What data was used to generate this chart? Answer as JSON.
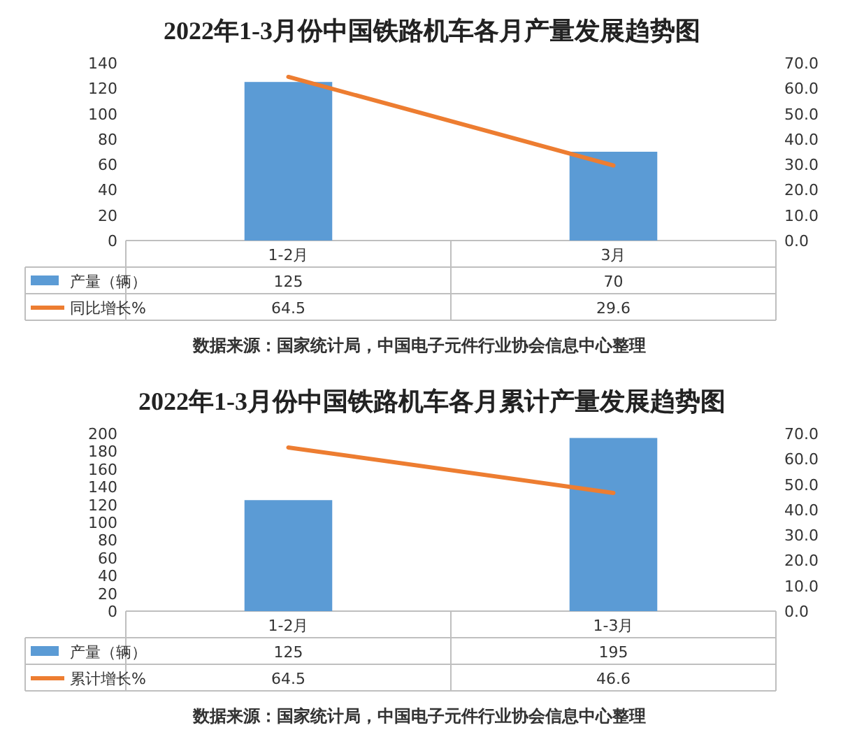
{
  "chart_data": [
    {
      "type": "bar",
      "title": "2022年1-3月份中国铁路机车各月产量发展趋势图",
      "categories": [
        "1-2月",
        "3月"
      ],
      "series": [
        {
          "name": "产量（辆）",
          "color": "#5b9bd5",
          "values": [
            125,
            70
          ]
        },
        {
          "name": "同比增长%",
          "type": "line",
          "axis": "y2",
          "color": "#ed7d31",
          "values": [
            64.5,
            29.6
          ]
        }
      ],
      "ylim": [
        0,
        140
      ],
      "yticks": [
        0,
        20,
        40,
        60,
        80,
        100,
        120,
        140
      ],
      "y2lim": [
        0,
        70
      ],
      "y2ticks": [
        {
          "value": 0,
          "label": "0.0"
        },
        {
          "value": 10,
          "label": "10.0"
        },
        {
          "value": 20,
          "label": "20.0"
        },
        {
          "value": 30,
          "label": "30.0"
        },
        {
          "value": 40,
          "label": "40.0"
        },
        {
          "value": 50,
          "label": "50.0"
        },
        {
          "value": 60,
          "label": "60.0"
        },
        {
          "value": 70,
          "label": "70.0"
        }
      ],
      "data_labels": true,
      "legend": "bottom",
      "grid": false,
      "annotations": [
        "数据来源：国家统计局，中国电子元件行业协会信息中心整理"
      ]
    },
    {
      "type": "bar",
      "title": "2022年1-3月份中国铁路机车各月累计产量发展趋势图",
      "categories": [
        "1-2月",
        "1-3月"
      ],
      "series": [
        {
          "name": "产量（辆）",
          "color": "#5b9bd5",
          "values": [
            125,
            195
          ]
        },
        {
          "name": "累计增长%",
          "type": "line",
          "axis": "y2",
          "color": "#ed7d31",
          "values": [
            64.5,
            46.6
          ]
        }
      ],
      "ylim": [
        0,
        200
      ],
      "yticks": [
        0,
        20,
        40,
        60,
        80,
        100,
        120,
        140,
        160,
        180,
        200
      ],
      "y2lim": [
        0,
        70
      ],
      "y2ticks": [
        {
          "value": 0,
          "label": "0.0"
        },
        {
          "value": 10,
          "label": "10.0"
        },
        {
          "value": 20,
          "label": "20.0"
        },
        {
          "value": 30,
          "label": "30.0"
        },
        {
          "value": 40,
          "label": "40.0"
        },
        {
          "value": 50,
          "label": "50.0"
        },
        {
          "value": 60,
          "label": "60.0"
        },
        {
          "value": 70,
          "label": "70.0"
        }
      ],
      "data_labels": true,
      "legend": "bottom",
      "grid": false,
      "annotations": [
        "数据来源：国家统计局，中国电子元件行业协会信息中心整理"
      ]
    }
  ]
}
